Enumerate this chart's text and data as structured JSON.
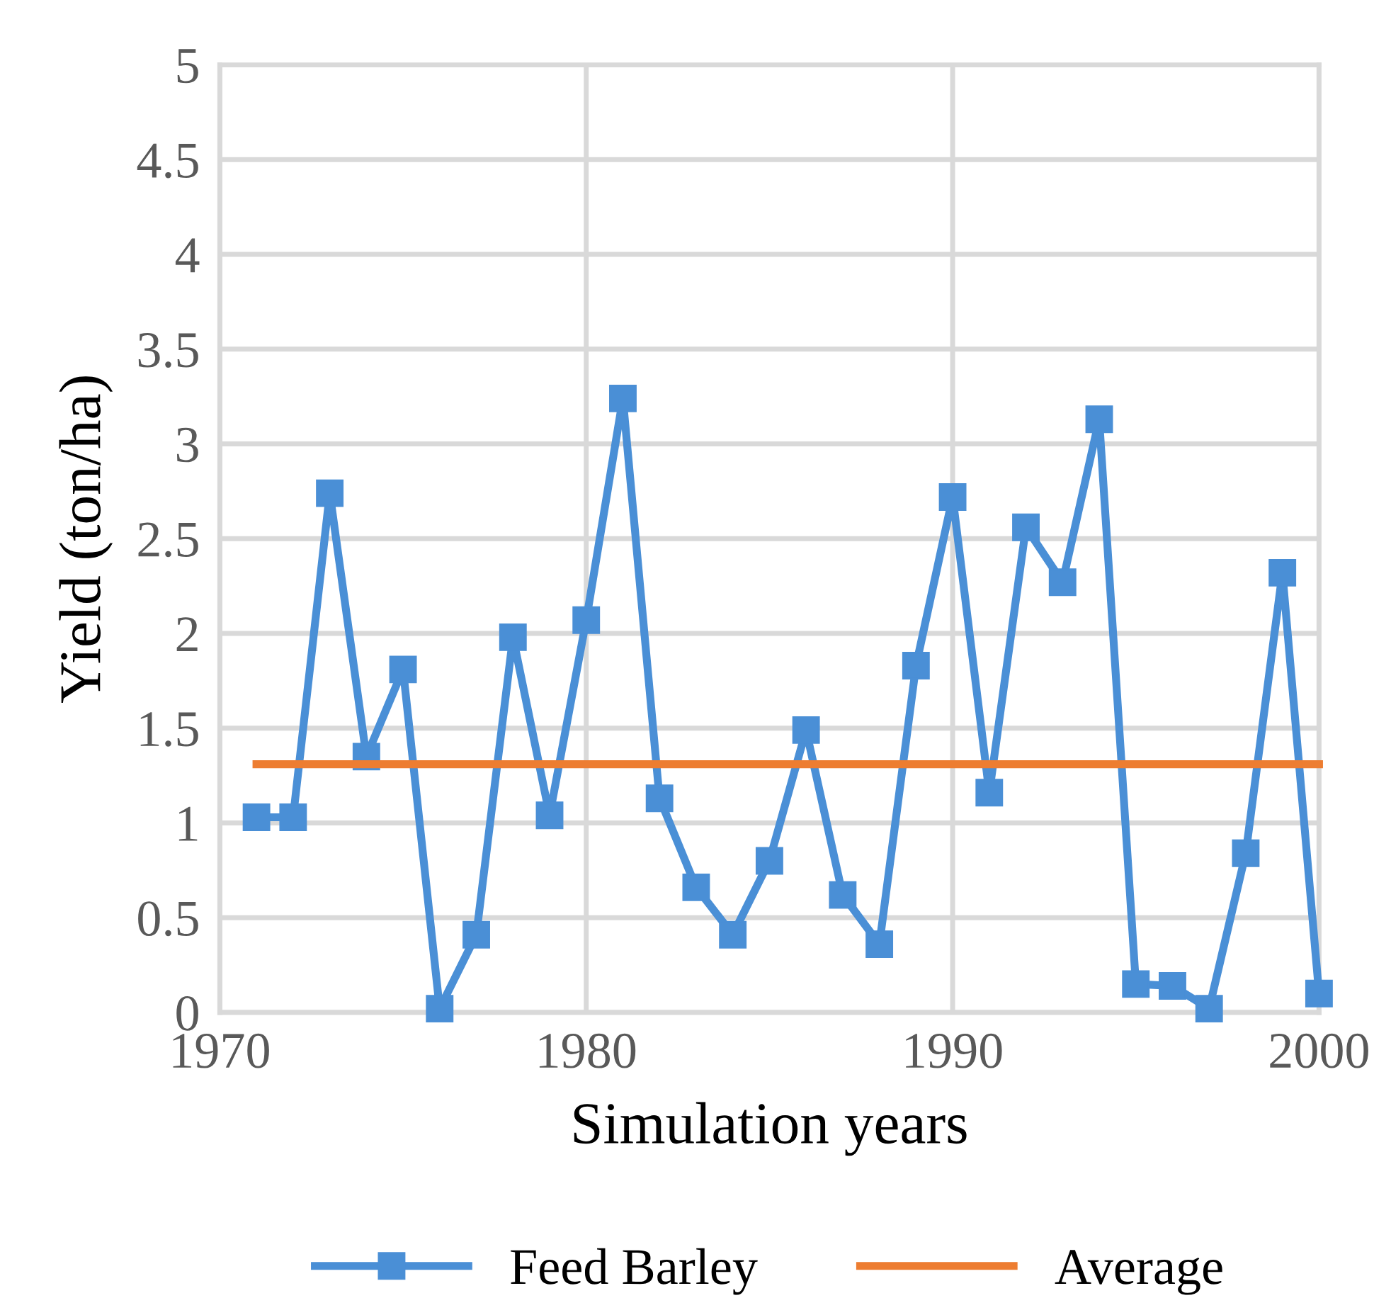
{
  "chart_data": {
    "type": "line",
    "xlabel": "Simulation years",
    "ylabel": "Yield (ton/ha)",
    "x": [
      1971,
      1972,
      1973,
      1974,
      1975,
      1976,
      1977,
      1978,
      1979,
      1980,
      1981,
      1982,
      1983,
      1984,
      1985,
      1986,
      1987,
      1988,
      1989,
      1990,
      1991,
      1992,
      1993,
      1994,
      1995,
      1996,
      1997,
      1998,
      1999,
      2000
    ],
    "series": [
      {
        "name": "Feed Barley",
        "color": "#4a8fd6",
        "marker": "square",
        "values": [
          1.03,
          1.03,
          2.74,
          1.35,
          1.81,
          0.02,
          0.41,
          1.98,
          1.04,
          2.07,
          3.24,
          1.13,
          0.66,
          0.41,
          0.8,
          1.49,
          0.62,
          0.36,
          1.83,
          2.72,
          1.16,
          2.56,
          2.27,
          3.13,
          0.15,
          0.14,
          0.02,
          0.84,
          2.32,
          0.1
        ]
      },
      {
        "name": "Average",
        "color": "#ed7d31",
        "marker": "none",
        "values": [
          1.31,
          1.31,
          1.31,
          1.31,
          1.31,
          1.31,
          1.31,
          1.31,
          1.31,
          1.31,
          1.31,
          1.31,
          1.31,
          1.31,
          1.31,
          1.31,
          1.31,
          1.31,
          1.31,
          1.31,
          1.31,
          1.31,
          1.31,
          1.31,
          1.31,
          1.31,
          1.31,
          1.31,
          1.31,
          1.31
        ]
      }
    ],
    "xlim": [
      1970,
      2000
    ],
    "xticks": [
      1970,
      1980,
      1990,
      2000
    ],
    "ylim": [
      0,
      5
    ],
    "yticks": [
      0,
      0.5,
      1,
      1.5,
      2,
      2.5,
      3,
      3.5,
      4,
      4.5,
      5
    ],
    "grid": true,
    "legend": "bottom",
    "line_style": "solid"
  }
}
